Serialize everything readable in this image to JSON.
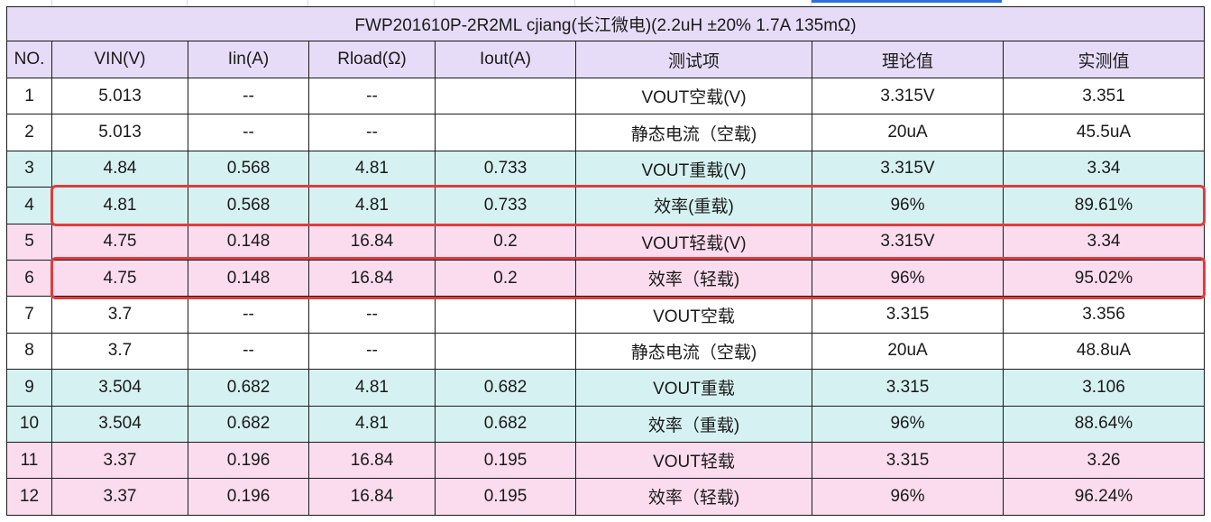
{
  "title": "FWP201610P-2R2ML  cjiang(长江微电)(2.2uH ±20% 1.7A 135mΩ)",
  "columns": [
    "NO.",
    "VIN(V)",
    "Iin(A)",
    "Rload(Ω)",
    "Iout(A)",
    "测试项",
    "理论值",
    "实测值"
  ],
  "rows": [
    {
      "style": "white",
      "cells": [
        "1",
        "5.013",
        "--",
        "--",
        "",
        "VOUT空载(V)",
        "3.315V",
        "3.351"
      ]
    },
    {
      "style": "white",
      "cells": [
        "2",
        "5.013",
        "--",
        "--",
        "",
        "静态电流（空载)",
        "20uA",
        "45.5uA"
      ]
    },
    {
      "style": "cyan",
      "cells": [
        "3",
        "4.84",
        "0.568",
        "4.81",
        "0.733",
        "VOUT重载(V)",
        "3.315V",
        "3.34"
      ]
    },
    {
      "style": "cyan",
      "cells": [
        "4",
        "4.81",
        "0.568",
        "4.81",
        "0.733",
        "效率(重载)",
        "96%",
        "89.61%"
      ]
    },
    {
      "style": "pink",
      "cells": [
        "5",
        "4.75",
        "0.148",
        "16.84",
        "0.2",
        "VOUT轻载(V)",
        "3.315V",
        "3.34"
      ]
    },
    {
      "style": "pink",
      "cells": [
        "6",
        "4.75",
        "0.148",
        "16.84",
        "0.2",
        "效率（轻载)",
        "96%",
        "95.02%"
      ]
    },
    {
      "style": "white",
      "cells": [
        "7",
        "3.7",
        "--",
        "--",
        "",
        "VOUT空载",
        "3.315",
        "3.356"
      ]
    },
    {
      "style": "white",
      "cells": [
        "8",
        "3.7",
        "--",
        "--",
        "",
        "静态电流（空载)",
        "20uA",
        "48.8uA"
      ]
    },
    {
      "style": "cyan",
      "cells": [
        "9",
        "3.504",
        "0.682",
        "4.81",
        "0.682",
        "VOUT重载",
        "3.315",
        "3.106"
      ]
    },
    {
      "style": "cyan",
      "cells": [
        "10",
        "3.504",
        "0.682",
        "4.81",
        "0.682",
        "效率（重载)",
        "96%",
        "88.64%"
      ]
    },
    {
      "style": "pink",
      "cells": [
        "11",
        "3.37",
        "0.196",
        "16.84",
        "0.195",
        "VOUT轻载",
        "3.315",
        "3.26"
      ]
    },
    {
      "style": "pink",
      "cells": [
        "12",
        "3.37",
        "0.196",
        "16.84",
        "0.195",
        "效率（轻载)",
        "96%",
        "96.24%"
      ]
    }
  ],
  "highlighted_rows": [
    "4",
    "6"
  ],
  "colors": {
    "header_bg": "#e6dcf7",
    "cyan_row": "#d6f1f1",
    "pink_row": "#fbdcee",
    "highlight_border": "#e03c3c",
    "selection": "#2e6fd8"
  }
}
